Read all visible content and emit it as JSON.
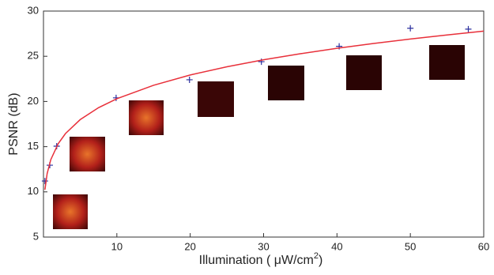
{
  "chart_data": {
    "type": "scatter",
    "xlabel": [
      "Illumination ( μW/cm",
      "2",
      ")"
    ],
    "ylabel": "PSNR (dB)",
    "xlim": [
      0,
      60
    ],
    "ylim": [
      5,
      30
    ],
    "xticks": [
      10,
      20,
      30,
      40,
      50,
      60
    ],
    "yticks": [
      5,
      10,
      15,
      20,
      25,
      30
    ],
    "grid": false,
    "series": [
      {
        "type": "scatter",
        "marker": "+",
        "color": "#2b2f9e",
        "x": [
          0.2,
          0.86,
          1.8,
          9.9,
          19.9,
          29.7,
          40.3,
          50,
          57.9
        ],
        "values": [
          11.2,
          12.95,
          15.05,
          20.4,
          22.4,
          24.4,
          26.1,
          28.1,
          28.0
        ]
      },
      {
        "type": "line",
        "color": "#e8303a",
        "x": [
          0.2,
          0.5,
          1,
          2,
          3,
          5,
          7.5,
          10,
          15,
          20,
          25,
          30,
          35,
          40,
          45,
          50,
          55,
          60
        ],
        "values": [
          10.24,
          12.02,
          13.57,
          15.32,
          16.45,
          17.99,
          19.31,
          20.3,
          21.79,
          22.93,
          23.84,
          24.61,
          25.28,
          25.88,
          26.42,
          26.91,
          27.36,
          27.78
        ]
      }
    ]
  }
}
